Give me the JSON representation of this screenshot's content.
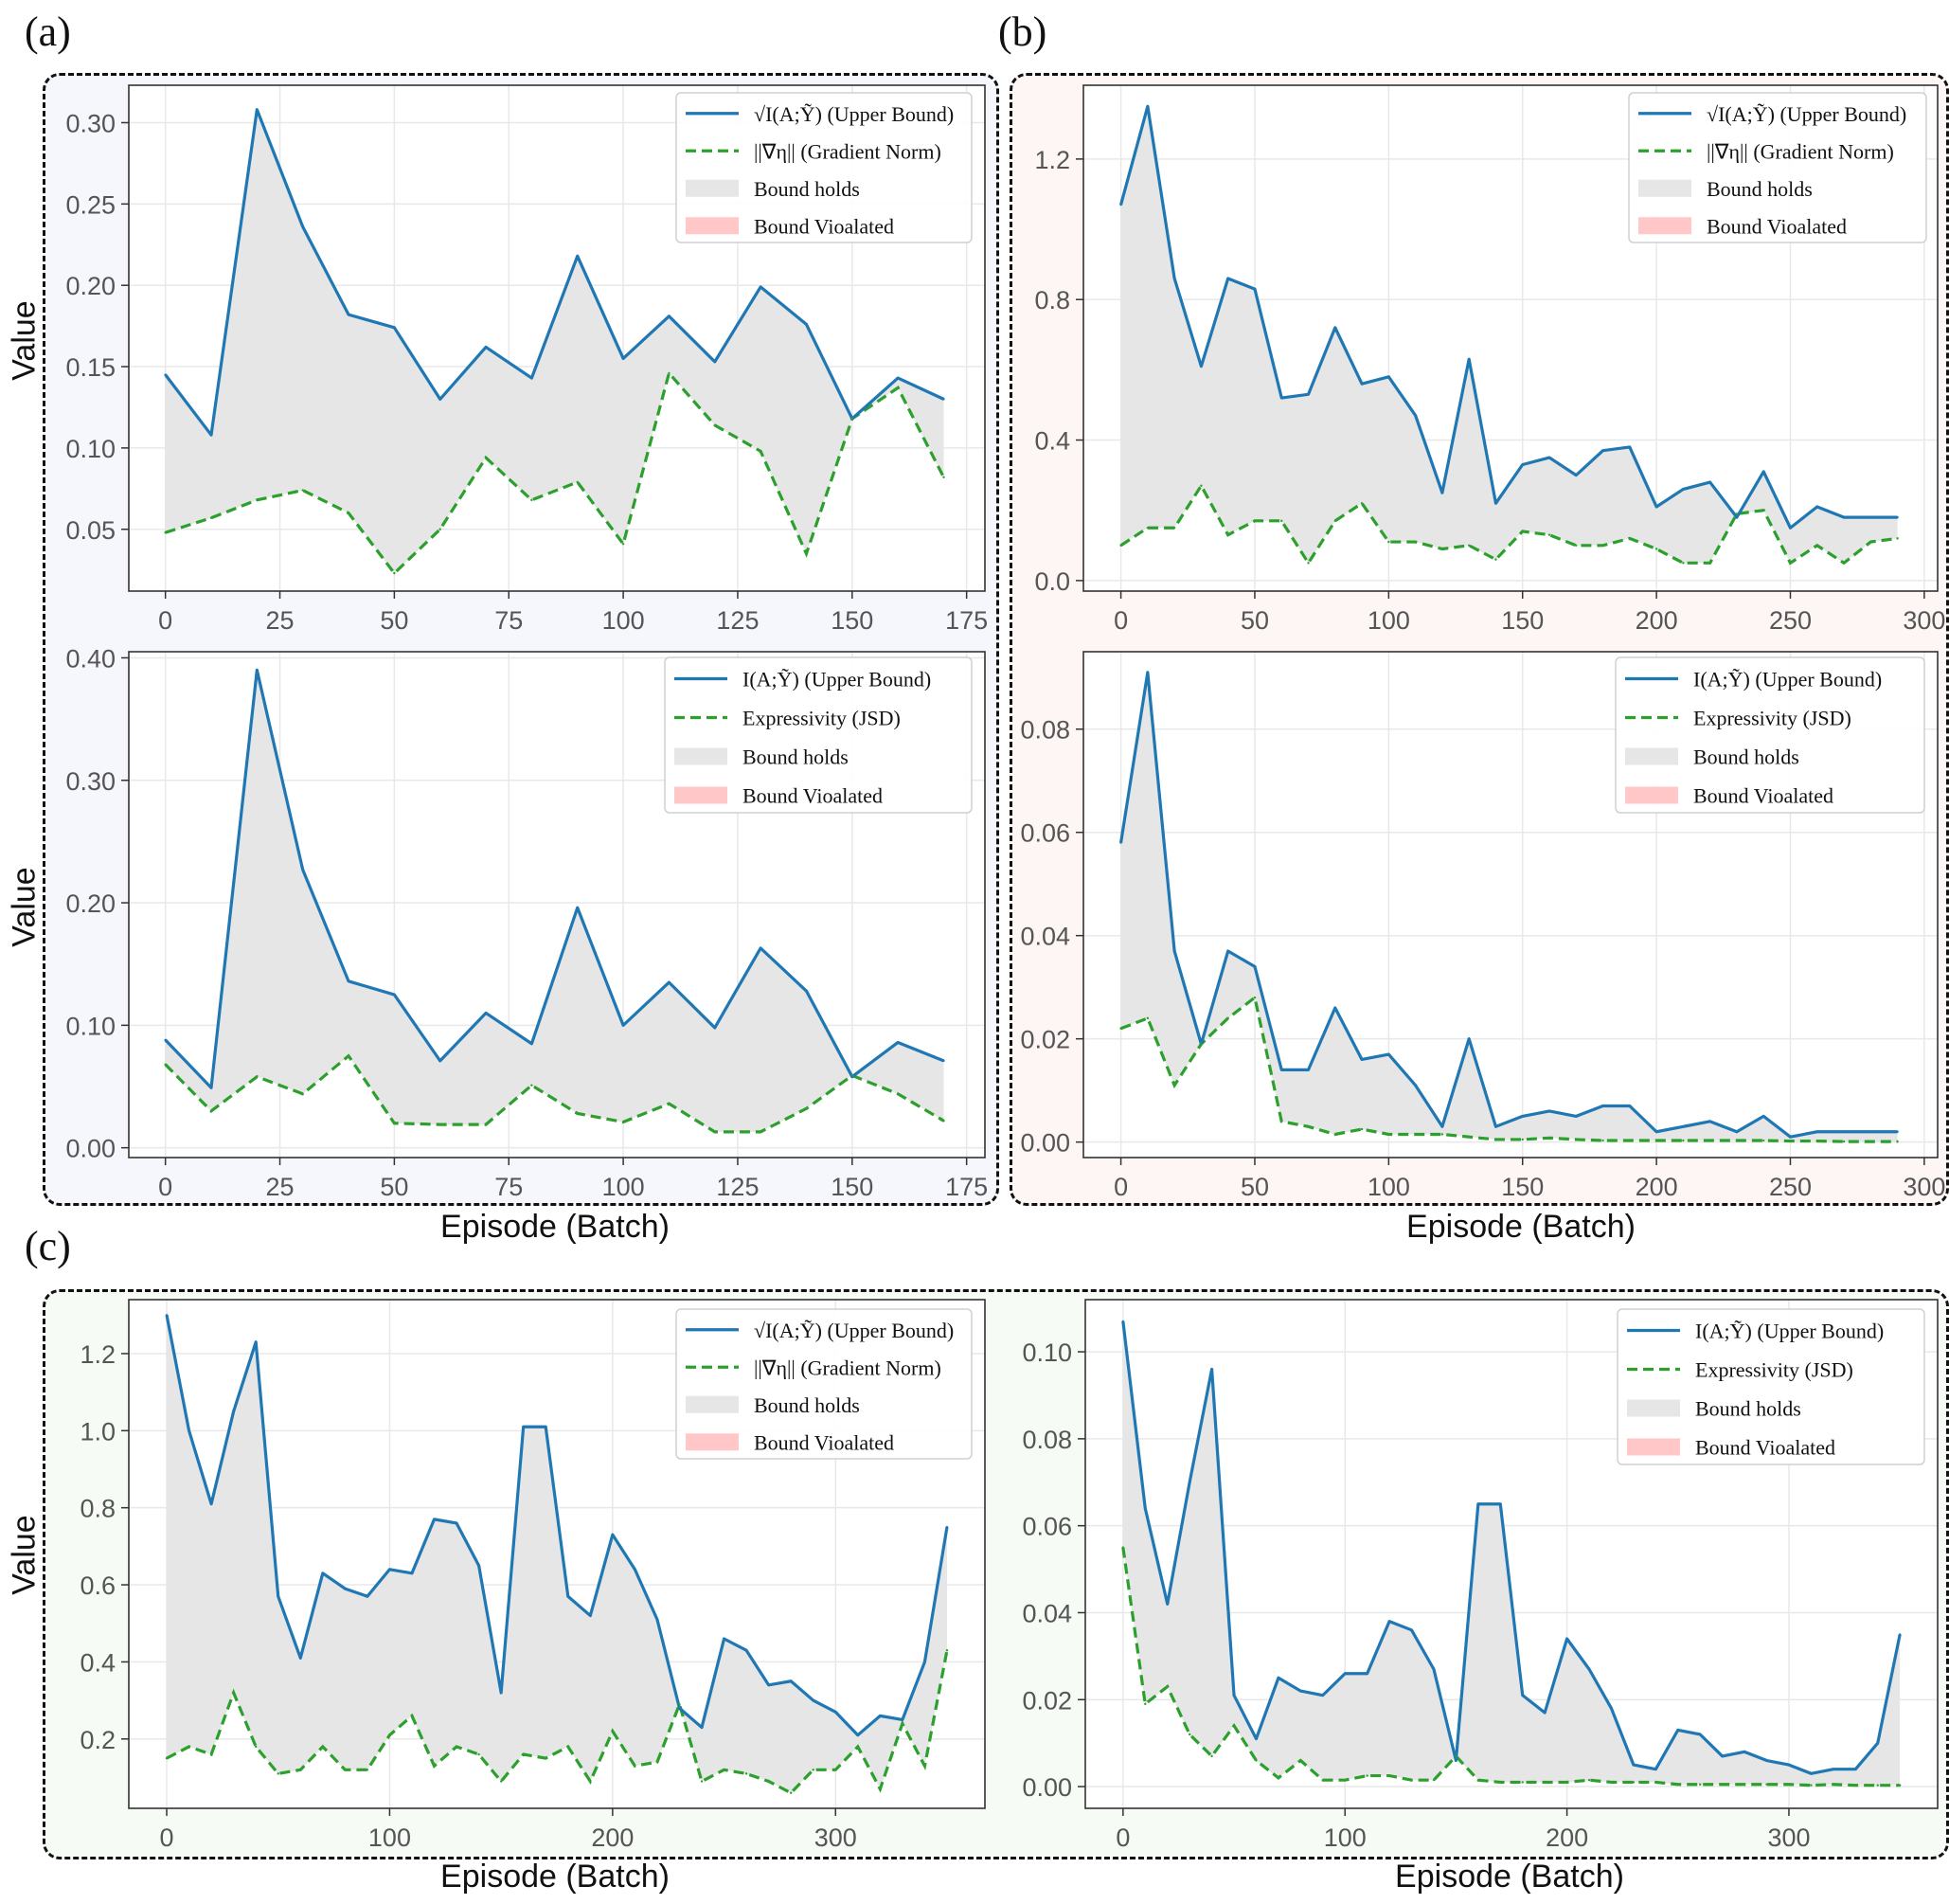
{
  "labels": {
    "a": "(a)",
    "b": "(b)",
    "c": "(c)"
  },
  "axis_titles": {
    "value": "Value",
    "episode": "Episode (Batch)"
  },
  "colors": {
    "upper": "#1f77b4",
    "lower": "#2ca02c",
    "holds": "#e6e6e6",
    "violated": "#ffc7c7",
    "bg_a": "#f6f6fd",
    "bg_b": "#fdf6f5",
    "bg_c": "#f6fbf5"
  },
  "chart_data": [
    {
      "id": "a-top",
      "type": "line",
      "legend": [
        "√I(A;Ỹ) (Upper Bound)",
        "||∇η|| (Gradient Norm)",
        "Bound holds",
        "Bound Vioalated"
      ],
      "x": [
        0,
        10,
        20,
        30,
        40,
        50,
        60,
        70,
        80,
        90,
        100,
        110,
        120,
        130,
        140,
        150,
        160,
        170
      ],
      "series": [
        {
          "name": "√I(A;Ỹ) (Upper Bound)",
          "values": [
            0.145,
            0.108,
            0.308,
            0.236,
            0.182,
            0.174,
            0.13,
            0.162,
            0.143,
            0.218,
            0.155,
            0.181,
            0.153,
            0.199,
            0.176,
            0.118,
            0.143,
            0.13
          ]
        },
        {
          "name": "||∇η|| (Gradient Norm)",
          "values": [
            0.048,
            0.057,
            0.068,
            0.074,
            0.06,
            0.023,
            0.05,
            0.094,
            0.068,
            0.079,
            0.041,
            0.146,
            0.114,
            0.098,
            0.035,
            0.118,
            0.137,
            0.082
          ]
        }
      ],
      "xlim": [
        -8,
        179
      ],
      "ylim": [
        0.012,
        0.323
      ],
      "xticks": [
        0,
        25,
        50,
        75,
        100,
        125,
        150,
        175
      ],
      "xticklabels": [
        "0",
        "25",
        "50",
        "75",
        "100",
        "125",
        "150",
        "175"
      ],
      "yticks": [
        0.05,
        0.1,
        0.15,
        0.2,
        0.25,
        0.3
      ],
      "yticklabels": [
        "0.05",
        "0.10",
        "0.15",
        "0.20",
        "0.25",
        "0.30"
      ]
    },
    {
      "id": "a-bottom",
      "type": "line",
      "legend": [
        "I(A;Ỹ) (Upper Bound)",
        "Expressivity (JSD)",
        "Bound holds",
        "Bound Vioalated"
      ],
      "x": [
        0,
        10,
        20,
        30,
        40,
        50,
        60,
        70,
        80,
        90,
        100,
        110,
        120,
        130,
        140,
        150,
        160,
        170
      ],
      "series": [
        {
          "name": "I(A;Ỹ) (Upper Bound)",
          "values": [
            0.088,
            0.049,
            0.39,
            0.227,
            0.136,
            0.125,
            0.071,
            0.11,
            0.085,
            0.196,
            0.1,
            0.135,
            0.098,
            0.163,
            0.128,
            0.058,
            0.086,
            0.071
          ]
        },
        {
          "name": "Expressivity (JSD)",
          "values": [
            0.068,
            0.03,
            0.058,
            0.044,
            0.075,
            0.02,
            0.019,
            0.019,
            0.051,
            0.028,
            0.021,
            0.036,
            0.013,
            0.013,
            0.032,
            0.059,
            0.044,
            0.022
          ]
        }
      ],
      "xlim": [
        -8,
        179
      ],
      "ylim": [
        -0.008,
        0.405
      ],
      "xticks": [
        0,
        25,
        50,
        75,
        100,
        125,
        150,
        175
      ],
      "xticklabels": [
        "0",
        "25",
        "50",
        "75",
        "100",
        "125",
        "150",
        "175"
      ],
      "yticks": [
        0.0,
        0.1,
        0.2,
        0.3,
        0.4
      ],
      "yticklabels": [
        "0.00",
        "0.10",
        "0.20",
        "0.30",
        "0.40"
      ]
    },
    {
      "id": "b-top",
      "type": "line",
      "legend": [
        "√I(A;Ỹ) (Upper Bound)",
        "||∇η|| (Gradient Norm)",
        "Bound holds",
        "Bound Vioalated"
      ],
      "x": [
        0,
        10,
        20,
        30,
        40,
        50,
        60,
        70,
        80,
        90,
        100,
        110,
        120,
        130,
        140,
        150,
        160,
        170,
        180,
        190,
        200,
        210,
        220,
        230,
        240,
        250,
        260,
        270,
        280,
        290
      ],
      "series": [
        {
          "name": "√I(A;Ỹ) (Upper Bound)",
          "values": [
            1.07,
            1.35,
            0.86,
            0.61,
            0.86,
            0.83,
            0.52,
            0.53,
            0.72,
            0.56,
            0.58,
            0.47,
            0.25,
            0.63,
            0.22,
            0.33,
            0.35,
            0.3,
            0.37,
            0.38,
            0.21,
            0.26,
            0.28,
            0.18,
            0.31,
            0.15,
            0.21,
            0.18,
            0.18,
            0.18
          ]
        },
        {
          "name": "||∇η|| (Gradient Norm)",
          "values": [
            0.1,
            0.15,
            0.15,
            0.27,
            0.13,
            0.17,
            0.17,
            0.05,
            0.17,
            0.22,
            0.11,
            0.11,
            0.09,
            0.1,
            0.06,
            0.14,
            0.13,
            0.1,
            0.1,
            0.12,
            0.09,
            0.05,
            0.05,
            0.19,
            0.2,
            0.05,
            0.1,
            0.05,
            0.11,
            0.12
          ]
        }
      ],
      "xlim": [
        -14,
        305
      ],
      "ylim": [
        -0.03,
        1.41
      ],
      "xticks": [
        0,
        50,
        100,
        150,
        200,
        250,
        300
      ],
      "xticklabels": [
        "0",
        "50",
        "100",
        "150",
        "200",
        "250",
        "300"
      ],
      "yticks": [
        0.0,
        0.4,
        0.8,
        1.2
      ],
      "yticklabels": [
        "0.0",
        "0.4",
        "0.8",
        "1.2"
      ]
    },
    {
      "id": "b-bottom",
      "type": "line",
      "legend": [
        "I(A;Ỹ) (Upper Bound)",
        "Expressivity (JSD)",
        "Bound holds",
        "Bound Vioalated"
      ],
      "x": [
        0,
        10,
        20,
        30,
        40,
        50,
        60,
        70,
        80,
        90,
        100,
        110,
        120,
        130,
        140,
        150,
        160,
        170,
        180,
        190,
        200,
        210,
        220,
        230,
        240,
        250,
        260,
        270,
        280,
        290
      ],
      "series": [
        {
          "name": "I(A;Ỹ) (Upper Bound)",
          "values": [
            0.058,
            0.091,
            0.037,
            0.019,
            0.037,
            0.034,
            0.014,
            0.014,
            0.026,
            0.016,
            0.017,
            0.011,
            0.003,
            0.02,
            0.003,
            0.005,
            0.006,
            0.005,
            0.007,
            0.007,
            0.002,
            0.003,
            0.004,
            0.002,
            0.005,
            0.001,
            0.002,
            0.002,
            0.002,
            0.002
          ]
        },
        {
          "name": "Expressivity (JSD)",
          "values": [
            0.022,
            0.024,
            0.011,
            0.019,
            0.024,
            0.028,
            0.004,
            0.003,
            0.0015,
            0.0025,
            0.0015,
            0.0015,
            0.0015,
            0.001,
            0.0005,
            0.0005,
            0.0008,
            0.0005,
            0.0003,
            0.0003,
            0.0003,
            0.0003,
            0.0003,
            0.0003,
            0.0003,
            0.0002,
            0.0002,
            0.0001,
            0.0001,
            0.0001
          ]
        }
      ],
      "xlim": [
        -14,
        305
      ],
      "ylim": [
        -0.003,
        0.095
      ],
      "xticks": [
        0,
        50,
        100,
        150,
        200,
        250,
        300
      ],
      "xticklabels": [
        "0",
        "50",
        "100",
        "150",
        "200",
        "250",
        "300"
      ],
      "yticks": [
        0.0,
        0.02,
        0.04,
        0.06,
        0.08
      ],
      "yticklabels": [
        "0.00",
        "0.02",
        "0.04",
        "0.06",
        "0.08"
      ]
    },
    {
      "id": "c-left",
      "type": "line",
      "legend": [
        "√I(A;Ỹ) (Upper Bound)",
        "||∇η|| (Gradient Norm)",
        "Bound holds",
        "Bound Vioalated"
      ],
      "x": [
        0,
        10,
        20,
        30,
        40,
        50,
        60,
        70,
        80,
        90,
        100,
        110,
        120,
        130,
        140,
        150,
        160,
        170,
        180,
        190,
        200,
        210,
        220,
        230,
        240,
        250,
        260,
        270,
        280,
        290,
        300,
        310,
        320,
        330,
        340,
        350
      ],
      "series": [
        {
          "name": "√I(A;Ỹ) (Upper Bound)",
          "values": [
            1.3,
            1.0,
            0.81,
            1.05,
            1.23,
            0.57,
            0.41,
            0.63,
            0.59,
            0.57,
            0.64,
            0.63,
            0.77,
            0.76,
            0.65,
            0.32,
            1.01,
            1.01,
            0.57,
            0.52,
            0.73,
            0.64,
            0.51,
            0.28,
            0.23,
            0.46,
            0.43,
            0.34,
            0.35,
            0.3,
            0.27,
            0.21,
            0.26,
            0.25,
            0.4,
            0.75
          ]
        },
        {
          "name": "||∇η|| (Gradient Norm)",
          "values": [
            0.15,
            0.18,
            0.16,
            0.32,
            0.18,
            0.11,
            0.12,
            0.18,
            0.12,
            0.12,
            0.21,
            0.26,
            0.13,
            0.18,
            0.16,
            0.09,
            0.16,
            0.15,
            0.18,
            0.09,
            0.22,
            0.13,
            0.14,
            0.29,
            0.09,
            0.12,
            0.11,
            0.09,
            0.06,
            0.12,
            0.12,
            0.18,
            0.07,
            0.24,
            0.13,
            0.43
          ]
        }
      ],
      "xlim": [
        -17,
        367
      ],
      "ylim": [
        0.02,
        1.34
      ],
      "xticks": [
        0,
        100,
        200,
        300
      ],
      "xticklabels": [
        "0",
        "100",
        "200",
        "300"
      ],
      "yticks": [
        0.2,
        0.4,
        0.6,
        0.8,
        1.0,
        1.2
      ],
      "yticklabels": [
        "0.2",
        "0.4",
        "0.6",
        "0.8",
        "1.0",
        "1.2"
      ]
    },
    {
      "id": "c-right",
      "type": "line",
      "legend": [
        "I(A;Ỹ) (Upper Bound)",
        "Expressivity (JSD)",
        "Bound holds",
        "Bound Vioalated"
      ],
      "x": [
        0,
        10,
        20,
        30,
        40,
        50,
        60,
        70,
        80,
        90,
        100,
        110,
        120,
        130,
        140,
        150,
        160,
        170,
        180,
        190,
        200,
        210,
        220,
        230,
        240,
        250,
        260,
        270,
        280,
        290,
        300,
        310,
        320,
        330,
        340,
        350
      ],
      "series": [
        {
          "name": "I(A;Ỹ) (Upper Bound)",
          "values": [
            0.107,
            0.064,
            0.042,
            0.07,
            0.096,
            0.021,
            0.011,
            0.025,
            0.022,
            0.021,
            0.026,
            0.026,
            0.038,
            0.036,
            0.027,
            0.006,
            0.065,
            0.065,
            0.021,
            0.017,
            0.034,
            0.027,
            0.018,
            0.005,
            0.004,
            0.013,
            0.012,
            0.007,
            0.008,
            0.006,
            0.005,
            0.003,
            0.004,
            0.004,
            0.01,
            0.035
          ]
        },
        {
          "name": "Expressivity (JSD)",
          "values": [
            0.055,
            0.019,
            0.023,
            0.012,
            0.007,
            0.014,
            0.006,
            0.002,
            0.006,
            0.0015,
            0.0015,
            0.0025,
            0.0025,
            0.0015,
            0.0015,
            0.007,
            0.0015,
            0.001,
            0.001,
            0.001,
            0.001,
            0.0015,
            0.001,
            0.001,
            0.001,
            0.0005,
            0.0005,
            0.0005,
            0.0005,
            0.0005,
            0.0005,
            0.0003,
            0.0005,
            0.0003,
            0.0003,
            0.0003
          ]
        }
      ],
      "xlim": [
        -17,
        367
      ],
      "ylim": [
        -0.005,
        0.112
      ],
      "xticks": [
        0,
        100,
        200,
        300
      ],
      "xticklabels": [
        "0",
        "100",
        "200",
        "300"
      ],
      "yticks": [
        0.0,
        0.02,
        0.04,
        0.06,
        0.08,
        0.1
      ],
      "yticklabels": [
        "0.00",
        "0.02",
        "0.04",
        "0.06",
        "0.08",
        "0.10"
      ]
    }
  ]
}
